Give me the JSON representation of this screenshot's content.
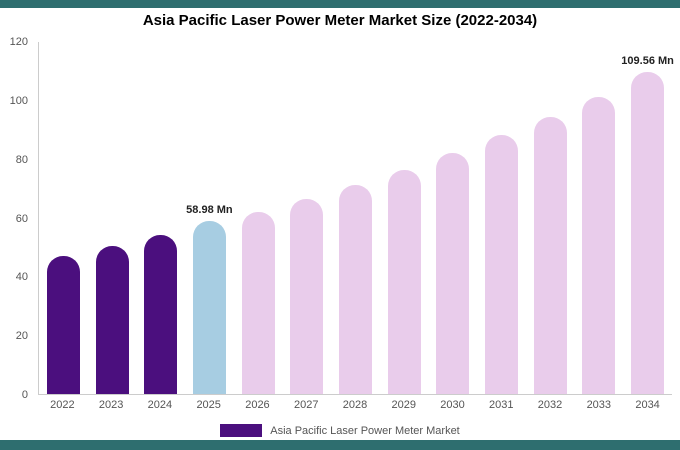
{
  "page": {
    "accent_strip_color": "#2E6E6F",
    "background_color": "#FFFFFF"
  },
  "chart_data": {
    "type": "bar",
    "title": "Asia Pacific Laser Power Meter Market Size (2022-2034)",
    "categories": [
      "2022",
      "2023",
      "2024",
      "2025",
      "2026",
      "2027",
      "2028",
      "2029",
      "2030",
      "2031",
      "2032",
      "2033",
      "2034"
    ],
    "values": [
      47,
      50.3,
      54,
      58.98,
      62,
      66.3,
      71,
      76,
      82,
      88,
      94,
      101,
      109.56
    ],
    "colors": [
      "#4B0F7E",
      "#4B0F7E",
      "#4B0F7E",
      "#A7CDE2",
      "#E9CCEB",
      "#E9CCEB",
      "#E9CCEB",
      "#E9CCEB",
      "#E9CCEB",
      "#E9CCEB",
      "#E9CCEB",
      "#E9CCEB",
      "#E9CCEB"
    ],
    "value_labels": [
      "",
      "",
      "",
      "58.98 Mn",
      "",
      "",
      "",
      "",
      "",
      "",
      "",
      "",
      "109.56 Mn"
    ],
    "xlabel": "",
    "ylabel": "",
    "ylim": [
      0,
      120
    ],
    "yticks": [
      0,
      20,
      40,
      60,
      80,
      100,
      120
    ],
    "grid": false,
    "legend": {
      "label": "Asia Pacific Laser Power Meter Market",
      "swatch_color": "#4B0F7E",
      "position": "bottom"
    }
  }
}
